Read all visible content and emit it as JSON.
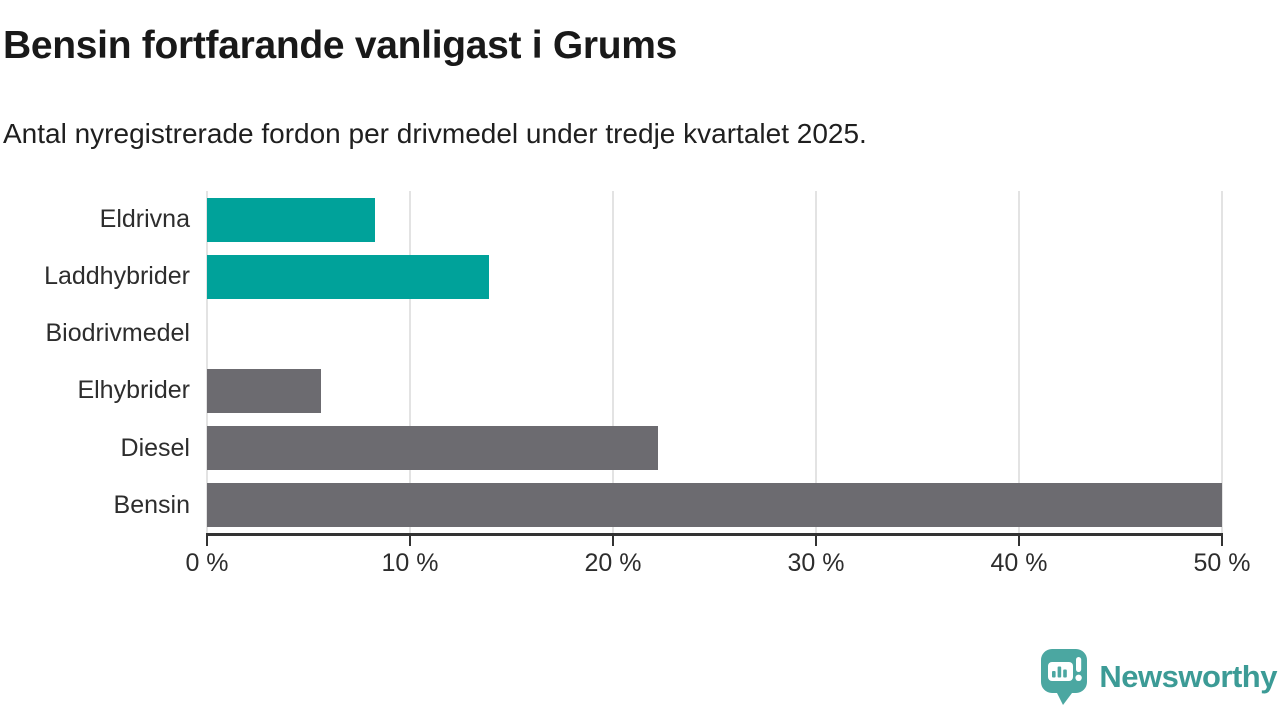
{
  "header": {
    "title": "Bensin fortfarande vanligast i Grums",
    "subtitle": "Antal nyregistrerade fordon per drivmedel under tredje kvartalet 2025."
  },
  "chart_data": {
    "type": "bar",
    "orientation": "horizontal",
    "title": "Bensin fortfarande vanligast i Grums",
    "subtitle": "Antal nyregistrerade fordon per drivmedel under tredje kvartalet 2025.",
    "categories": [
      "Eldrivna",
      "Laddhybrider",
      "Biodrivmedel",
      "Elhybrider",
      "Diesel",
      "Bensin"
    ],
    "values": [
      8.3,
      13.9,
      0,
      5.6,
      22.2,
      50
    ],
    "unit": "%",
    "bar_colors": [
      "#00a29a",
      "#00a29a",
      "#6c6b70",
      "#6c6b70",
      "#6c6b70",
      "#6c6b70"
    ],
    "xlabel": "",
    "ylabel": "",
    "xlim": [
      0,
      50
    ],
    "x_ticks": [
      0,
      10,
      20,
      30,
      40,
      50
    ],
    "x_tick_labels": [
      "0 %",
      "10 %",
      "20 %",
      "30 %",
      "40 %",
      "50 %"
    ],
    "grid": "vertical-gridlines-on",
    "legend": "none"
  },
  "branding": {
    "logo_text": "Newsworthy",
    "logo_text_color": "#3c9b96",
    "logo_mark_color": "#4ba7a1"
  },
  "colors": {
    "teal_bar": "#00a29a",
    "gray_bar": "#6c6b70",
    "gridline": "#e3e3e3",
    "axis_line": "#333333",
    "text": "#2d2d2d",
    "background": "#ffffff"
  }
}
